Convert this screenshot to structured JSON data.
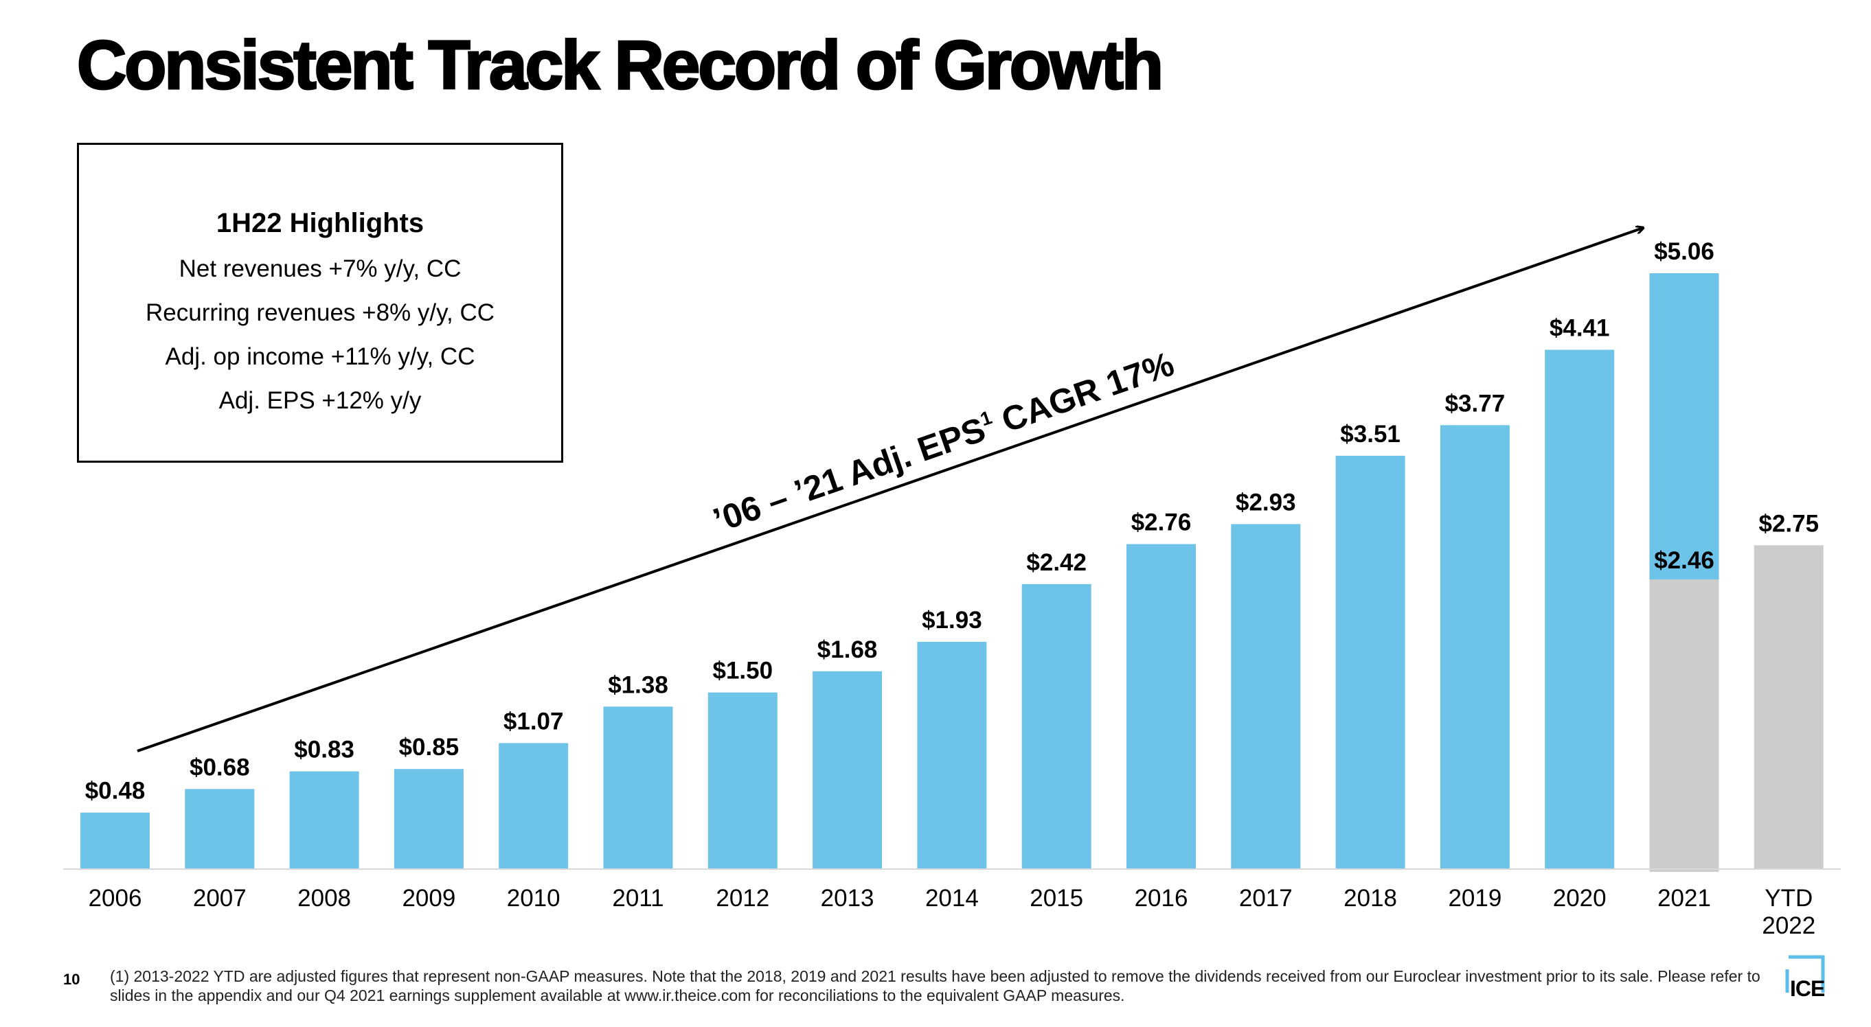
{
  "title": "Consistent Track Record of Growth",
  "highlights": {
    "heading": "1H22 Highlights",
    "lines": [
      "Net revenues +7% y/y, CC",
      "Recurring revenues +8% y/y, CC",
      "Adj. op income +11% y/y, CC",
      "Adj. EPS +12% y/y"
    ]
  },
  "chart_data": {
    "type": "bar",
    "categories": [
      "2006",
      "2007",
      "2008",
      "2009",
      "2010",
      "2011",
      "2012",
      "2013",
      "2014",
      "2015",
      "2016",
      "2017",
      "2018",
      "2019",
      "2020",
      "2021",
      "YTD 2022"
    ],
    "values": [
      0.48,
      0.68,
      0.83,
      0.85,
      1.07,
      1.38,
      1.5,
      1.68,
      1.93,
      2.42,
      2.76,
      2.93,
      3.51,
      3.77,
      4.41,
      5.06,
      2.75
    ],
    "value_labels": [
      "$0.48",
      "$0.68",
      "$0.83",
      "$0.85",
      "$1.07",
      "$1.38",
      "$1.50",
      "$1.68",
      "$1.93",
      "$2.42",
      "$2.76",
      "$2.93",
      "$3.51",
      "$3.77",
      "$4.41",
      "$5.06",
      "$2.75"
    ],
    "overlay": {
      "category": "2021",
      "value": 2.46,
      "label": "$2.46"
    },
    "annotation": {
      "text": "’06 – ’21 Adj. EPS",
      "superscript": "1",
      "text_after": " CAGR 17%"
    },
    "colors": {
      "bar": "#6ec3e8",
      "ytd_bar": "#cccccc",
      "overlay": "#cccccc",
      "baseline": "#d9d9d9"
    },
    "ylim": [
      0,
      5.06
    ],
    "grid": false,
    "legend": "none"
  },
  "footnote": "(1) 2013-2022 YTD are adjusted figures that represent non-GAAP measures. Note that the 2018, 2019 and 2021 results have been adjusted to remove the dividends received from our Euroclear investment prior to its sale. Please refer to slides in the appendix and our Q4 2021 earnings supplement available at www.ir.theice.com for reconciliations to the equivalent GAAP measures.",
  "page_number": "10",
  "logo_text": "ICE"
}
